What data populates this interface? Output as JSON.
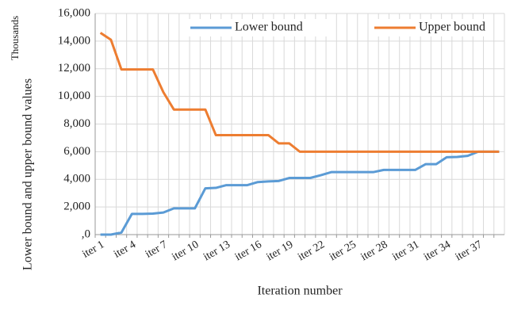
{
  "chart_data": {
    "type": "line",
    "y_label": "Lower bound and upper bound values",
    "y_unit_label": "Thousands",
    "x_label": "Iteration number",
    "categories": [
      "iter 1",
      null,
      null,
      "iter 4",
      null,
      null,
      "iter 7",
      null,
      null,
      "iter 10",
      null,
      null,
      "iter 13",
      null,
      null,
      "iter 16",
      null,
      null,
      "iter 19",
      null,
      null,
      "iter 22",
      null,
      null,
      "iter 25",
      null,
      null,
      "iter 28",
      null,
      null,
      "iter 31",
      null,
      null,
      "iter 34",
      null,
      null,
      "iter 37",
      null,
      null
    ],
    "series": [
      {
        "name": "Lower bound",
        "color": "#5b9bd5",
        "values": [
          0,
          0,
          150,
          1500,
          1500,
          1520,
          1600,
          1900,
          1900,
          1900,
          3350,
          3380,
          3580,
          3580,
          3580,
          3800,
          3850,
          3880,
          4100,
          4100,
          4100,
          4300,
          4520,
          4520,
          4520,
          4520,
          4520,
          4680,
          4680,
          4680,
          4680,
          5100,
          5100,
          5600,
          5620,
          5700,
          6000,
          6000,
          6000
        ]
      },
      {
        "name": "Upper bound",
        "color": "#ed7d31",
        "values": [
          14600,
          14100,
          11950,
          11950,
          11950,
          11950,
          10300,
          9050,
          9050,
          9050,
          9050,
          7200,
          7200,
          7200,
          7200,
          7200,
          7200,
          6600,
          6600,
          6000,
          6000,
          6000,
          6000,
          6000,
          6000,
          6000,
          6000,
          6000,
          6000,
          6000,
          6000,
          6000,
          6000,
          6000,
          6000,
          6000,
          6000,
          6000,
          6000
        ]
      }
    ],
    "ylim": [
      0,
      16000
    ],
    "yticks": [
      {
        "value": 0,
        "label": ",0"
      },
      {
        "value": 2000,
        "label": "2,000"
      },
      {
        "value": 4000,
        "label": "4,000"
      },
      {
        "value": 6000,
        "label": "6,000"
      },
      {
        "value": 8000,
        "label": "8,000"
      },
      {
        "value": 10000,
        "label": "10,000"
      },
      {
        "value": 12000,
        "label": "12,000"
      },
      {
        "value": 14000,
        "label": "14,000"
      },
      {
        "value": 16000,
        "label": "16,000"
      }
    ],
    "grid": true,
    "legend": "top"
  }
}
